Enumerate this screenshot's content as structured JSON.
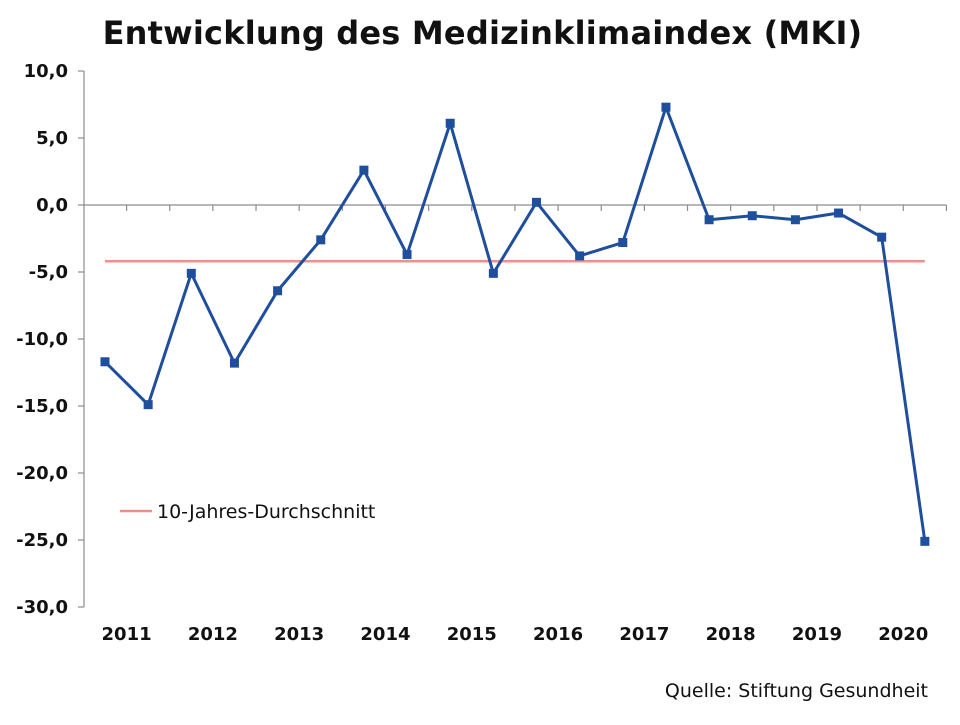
{
  "chart_data": {
    "type": "line",
    "title": "Entwicklung des Medizinklimaindex (MKI)",
    "xlabel": "",
    "ylabel": "",
    "ylim": [
      -30,
      10
    ],
    "yticks": [
      10,
      5,
      0,
      -5,
      -10,
      -15,
      -20,
      -25,
      -30
    ],
    "ytick_labels": [
      "10,0",
      "5,0",
      "0,0",
      "-5,0",
      "-10,0",
      "-15,0",
      "-20,0",
      "-25,0",
      "-30,0"
    ],
    "year_labels": [
      "2011",
      "2012",
      "2013",
      "2014",
      "2015",
      "2016",
      "2017",
      "2018",
      "2019",
      "2020"
    ],
    "series": [
      {
        "values": [
          -11.7,
          -14.9,
          -5.1,
          -11.8,
          -6.4,
          -2.6,
          2.6,
          -3.7,
          6.1,
          -5.1,
          0.2,
          -3.8,
          -2.8,
          7.3,
          -1.1,
          -0.8,
          -1.1,
          -0.6,
          -2.4,
          -25.1
        ],
        "color": "#1f4e9c"
      }
    ],
    "reference_line": {
      "name": "10-Jahres-Durchschnitt",
      "value": -4.2,
      "color": "#e8938e"
    },
    "grid": false,
    "legend_position": "lower-left"
  },
  "footer": {
    "source": "Quelle: Stiftung Gesundheit"
  }
}
